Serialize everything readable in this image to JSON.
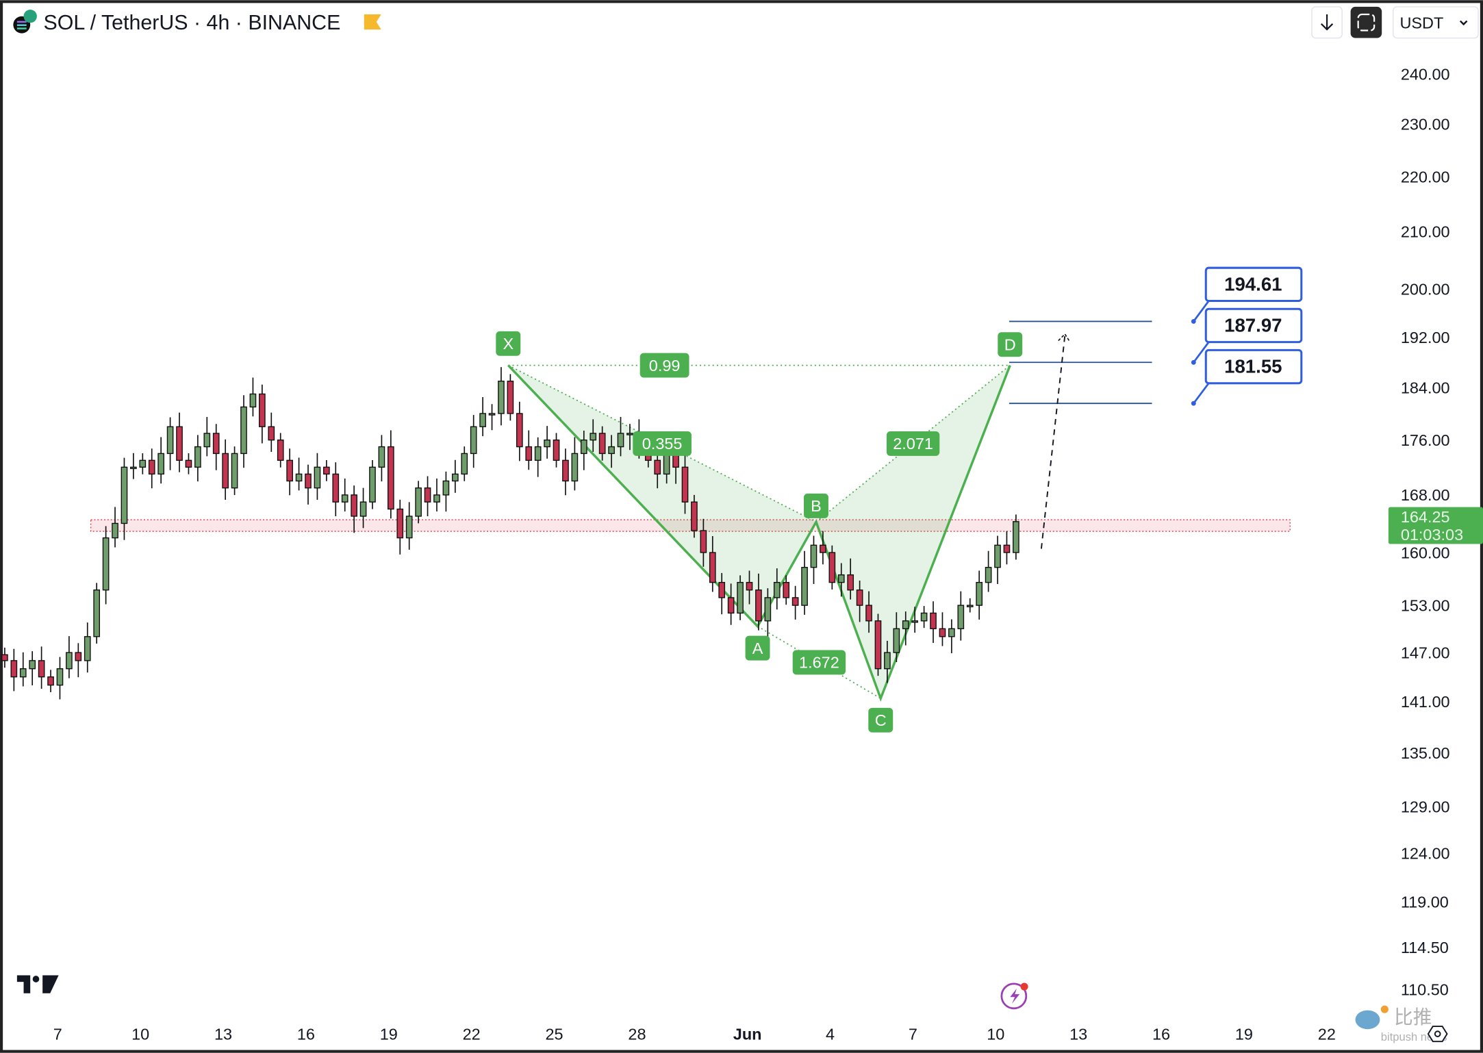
{
  "header": {
    "symbol_title": "SOL / TetherUS · 4h · BINANCE",
    "currency_select": "USDT",
    "icons": [
      "solana-tether-logo",
      "flag-icon",
      "arrow-down-icon",
      "fullscreen-icon",
      "chevron-down-icon"
    ]
  },
  "price_label": {
    "price": "164.25",
    "countdown": "01:03:03",
    "color": "#4caf50"
  },
  "targets": [
    {
      "price": 194.61,
      "label": "194.61"
    },
    {
      "price": 187.97,
      "label": "187.97"
    },
    {
      "price": 181.55,
      "label": "181.55"
    }
  ],
  "footer": {
    "logo": "TradingView",
    "watermark": "比推 bitpush news"
  },
  "chart_data": {
    "type": "candlestick",
    "scale": "log",
    "ylim": [
      110.5,
      240
    ],
    "y_ticks": [
      "240.00",
      "230.00",
      "220.00",
      "210.00",
      "200.00",
      "192.00",
      "184.00",
      "176.00",
      "168.00",
      "160.00",
      "153.00",
      "147.00",
      "141.00",
      "135.00",
      "129.00",
      "124.00",
      "119.00",
      "114.50",
      "110.50"
    ],
    "x_ticks": [
      "7",
      "10",
      "13",
      "16",
      "19",
      "22",
      "25",
      "28",
      "Jun",
      "4",
      "7",
      "10",
      "13",
      "16",
      "19",
      "22"
    ],
    "series_start": "May 5",
    "interval": "8h",
    "closes": [
      146,
      144,
      145,
      146,
      144,
      143,
      145,
      147,
      146,
      149,
      155,
      162,
      164,
      172,
      172,
      173,
      171,
      174,
      178,
      173,
      172,
      175,
      177,
      174,
      169,
      174,
      181,
      183,
      178,
      176,
      173,
      170,
      171,
      169,
      172,
      171,
      167,
      168,
      165,
      167,
      172,
      175,
      166,
      162,
      165,
      169,
      167,
      168,
      170,
      171,
      174,
      178,
      180,
      180,
      185,
      180,
      175,
      173,
      175,
      176,
      173,
      170,
      174,
      176,
      177,
      174,
      175,
      177,
      177,
      175,
      173,
      171,
      174,
      172,
      167,
      163,
      160,
      156,
      154,
      152,
      156,
      155,
      151,
      154,
      156,
      154,
      153,
      158,
      161,
      160,
      156,
      157,
      155,
      153,
      151,
      145,
      147,
      150,
      151,
      151,
      152,
      150,
      149,
      150,
      153,
      153,
      156,
      158,
      161,
      160,
      164.25
    ],
    "up_color": "#6f9e6c",
    "down_color": "#c2344f",
    "harmonic_pattern": {
      "points": [
        {
          "label": "X",
          "date": "May 23",
          "price": 187.5
        },
        {
          "label": "A",
          "date": "Jun 1",
          "price": 150.3
        },
        {
          "label": "B",
          "date": "Jun 3",
          "price": 164.2
        },
        {
          "label": "C",
          "date": "Jun 5",
          "price": 141.4
        },
        {
          "label": "D",
          "date": "Jun 10",
          "price": 187.5
        }
      ],
      "ratios": {
        "XB": "0.355",
        "XD": "0.99",
        "AC": "1.672",
        "BD": "2.071"
      },
      "color": "#4caf50"
    },
    "zone": {
      "low": 162.9,
      "high": 164.5,
      "color": "#e03c4a"
    }
  }
}
